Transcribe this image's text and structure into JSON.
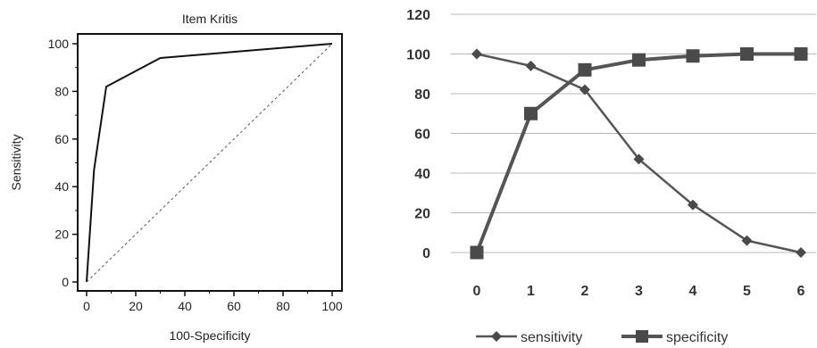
{
  "chart_data": [
    {
      "type": "line",
      "title": "Item Kritis",
      "xlabel": "100-Specificity",
      "ylabel": "Sensitivity",
      "xlim": [
        0,
        100
      ],
      "ylim": [
        0,
        100
      ],
      "x_ticks": [
        0,
        20,
        40,
        60,
        80,
        100
      ],
      "y_ticks": [
        0,
        20,
        40,
        60,
        80,
        100
      ],
      "grid": false,
      "series": [
        {
          "style": "solid",
          "x": [
            0,
            3,
            8,
            30,
            100
          ],
          "y": [
            0,
            47,
            82,
            94,
            100
          ]
        },
        {
          "style": "dashed-diagonal",
          "x": [
            0,
            100
          ],
          "y": [
            0,
            100
          ]
        }
      ]
    },
    {
      "type": "line",
      "categories": [
        "0",
        "1",
        "2",
        "3",
        "4",
        "5",
        "6"
      ],
      "ylim": [
        0,
        120
      ],
      "y_ticks": [
        0,
        20,
        40,
        60,
        80,
        100,
        120
      ],
      "grid": true,
      "legend": "bottom",
      "series": [
        {
          "name": "sensitivity",
          "marker": "diamond",
          "values": [
            100,
            94,
            82,
            47,
            24,
            6,
            0
          ]
        },
        {
          "name": "specificity",
          "marker": "square",
          "values": [
            0,
            70,
            92,
            97,
            99,
            100,
            100
          ]
        }
      ]
    }
  ]
}
